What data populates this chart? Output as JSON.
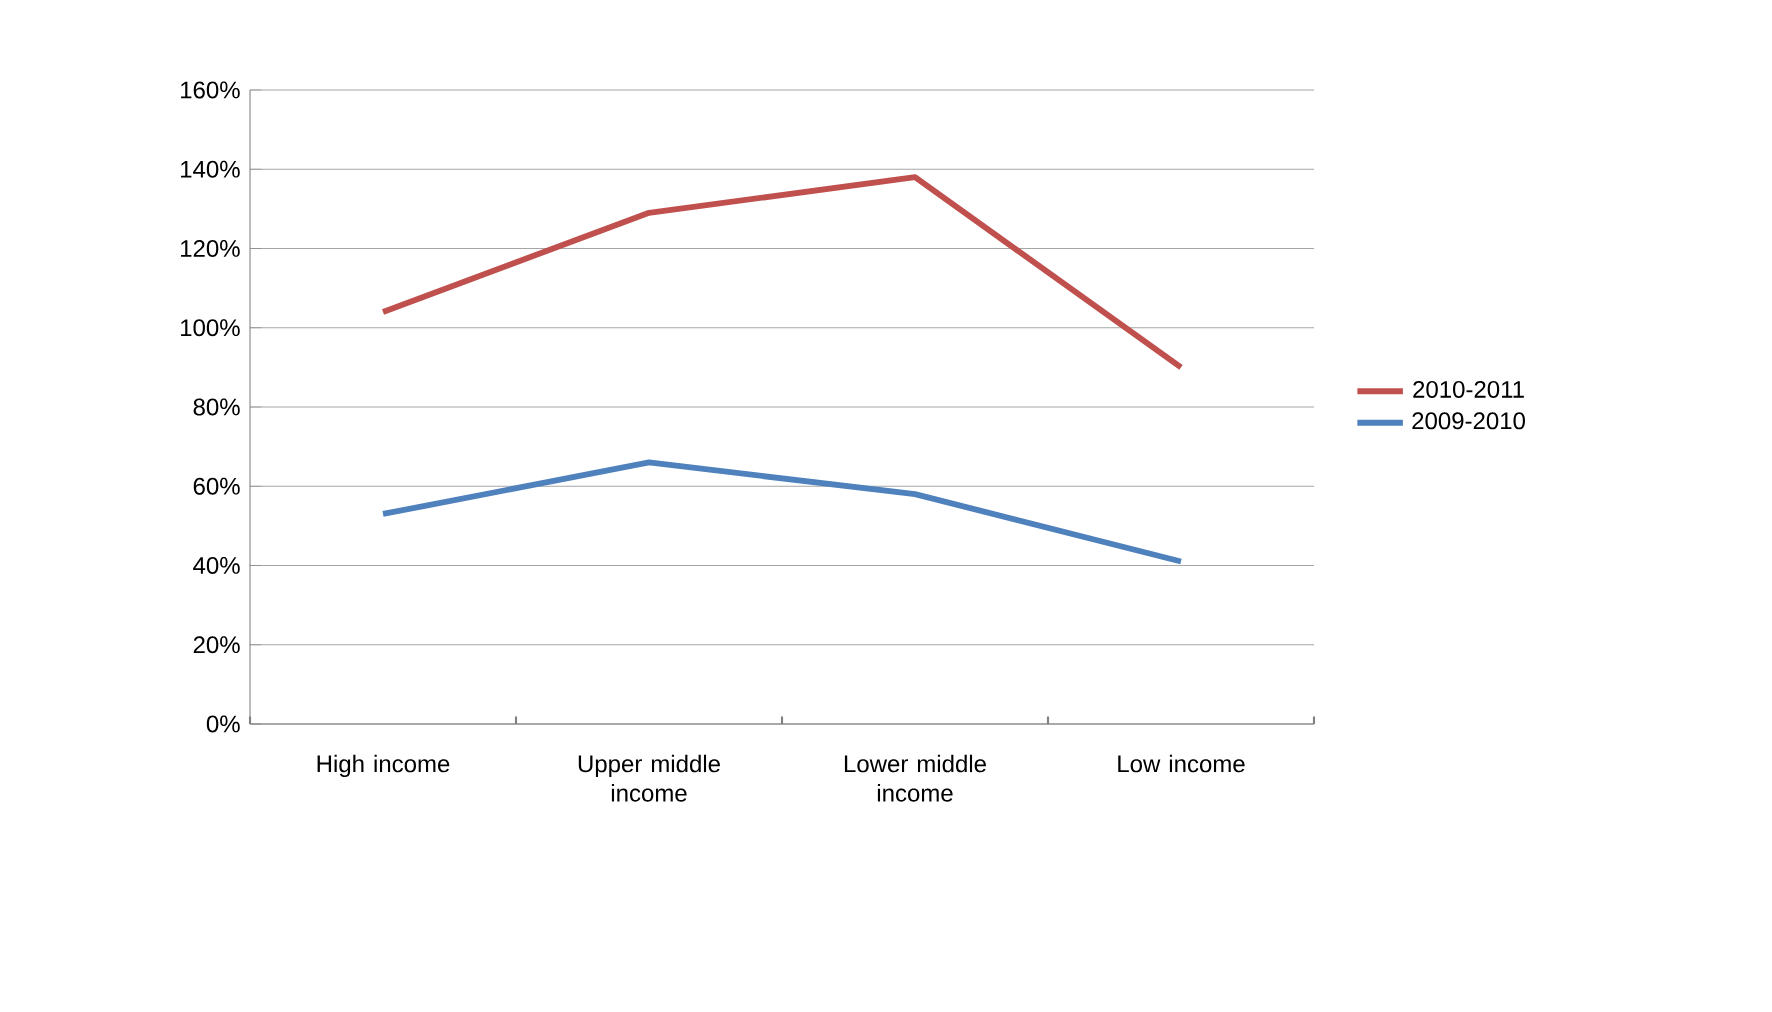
{
  "chart_data": {
    "type": "line",
    "categories": [
      "High income",
      "Upper middle income",
      "Lower middle income",
      "Low income"
    ],
    "series": [
      {
        "name": "2010-2011",
        "color": "#c0504d",
        "values": [
          104,
          129,
          138,
          90
        ]
      },
      {
        "name": "2009-2010",
        "color": "#4f81bd",
        "values": [
          53,
          66,
          58,
          41
        ]
      }
    ],
    "ylim": [
      0,
      160
    ],
    "yticks": [
      {
        "value": 0,
        "label": "0%"
      },
      {
        "value": 20,
        "label": "20%"
      },
      {
        "value": 40,
        "label": "40%"
      },
      {
        "value": 60,
        "label": "60%"
      },
      {
        "value": 80,
        "label": "80%"
      },
      {
        "value": 100,
        "label": "100%"
      },
      {
        "value": 120,
        "label": "120%"
      },
      {
        "value": 140,
        "label": "140%"
      },
      {
        "value": 160,
        "label": "160%"
      }
    ],
    "grid": "y",
    "legend": "right",
    "marker": "none",
    "line_style": "solid"
  }
}
